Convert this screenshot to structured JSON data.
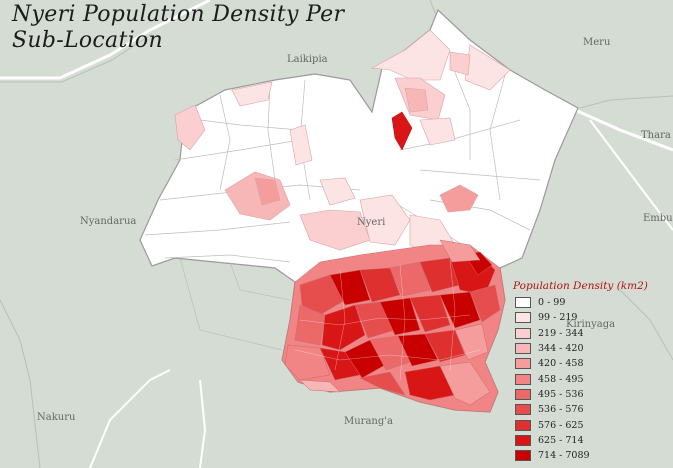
{
  "title_line1": "Nyeri Population Density Per",
  "title_line2": "Sub-Location",
  "places": {
    "laikipia": "Laikipia",
    "meru": "Meru",
    "tharaka": "Thara",
    "embu": "Embu",
    "nyandarua": "Nyandarua",
    "nyeri": "Nyeri",
    "kirinyaga": "Kirinyaga",
    "nakuru": "Nakuru",
    "muranga": "Murang'a"
  },
  "legend": {
    "title": "Population Density (km2)",
    "classes": [
      {
        "label": "0 - 99",
        "color": "#ffffff"
      },
      {
        "label": "99 - 219",
        "color": "#fde4e4"
      },
      {
        "label": "219 - 344",
        "color": "#fbcfcf"
      },
      {
        "label": "344 - 420",
        "color": "#f8b7b7"
      },
      {
        "label": "420 - 458",
        "color": "#f59d9d"
      },
      {
        "label": "458 - 495",
        "color": "#f18484"
      },
      {
        "label": "495 - 536",
        "color": "#ec6969"
      },
      {
        "label": "536 - 576",
        "color": "#e64e4e"
      },
      {
        "label": "576 - 625",
        "color": "#df3030"
      },
      {
        "label": "625 - 714",
        "color": "#d81616"
      },
      {
        "label": "714 - 7089",
        "color": "#c90000"
      }
    ]
  },
  "colors": {
    "background": "#d4dcd3",
    "county_base": "#ffffff",
    "boundary": "#a8a8a8",
    "road": "#ffffff"
  }
}
